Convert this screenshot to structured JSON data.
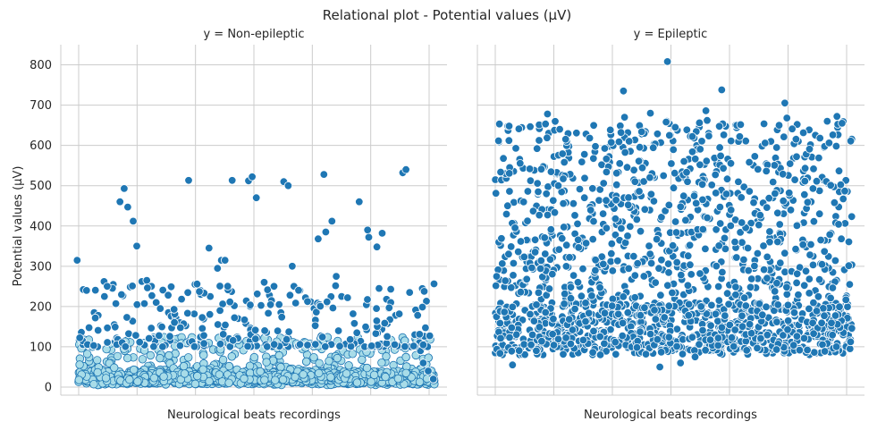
{
  "chart_data": {
    "type": "scatter",
    "title": "Relational plot - Potential values (µV)",
    "ylabel": "Potential values (µV)",
    "ylim": [
      -20,
      850
    ],
    "yticks": [
      0,
      100,
      200,
      300,
      400,
      500,
      600,
      700,
      800
    ],
    "ytick_labels": [
      "0",
      "100",
      "200",
      "300",
      "400",
      "500",
      "600",
      "700",
      "800"
    ],
    "grid": true,
    "colors": {
      "marker_fill": "#1f77b4",
      "marker_edge": "#ffffff",
      "dense_fill": "#a8dce8",
      "grid": "#cccccc"
    },
    "panels": [
      {
        "facet_title": "y = Non-epileptic",
        "xlabel": "Neurological beats recordings",
        "point_count": 2300,
        "dense_band": [
          5,
          125
        ],
        "series_values_sample": [
          315,
          242,
          240,
          185,
          178,
          262,
          225,
          255,
          155,
          460,
          493,
          447,
          412,
          350,
          262,
          265,
          250,
          210,
          195,
          185,
          176,
          172,
          160,
          152,
          513,
          255,
          240,
          230,
          345,
          225,
          295,
          315,
          315,
          513,
          202,
          170,
          158,
          512,
          522,
          470,
          260,
          228,
          215,
          205,
          510,
          500,
          300,
          250,
          240,
          222,
          212,
          195,
          368,
          528,
          385,
          412,
          275,
          225,
          222,
          182,
          158,
          460,
          390,
          372,
          348,
          245,
          382,
          218,
          210,
          178,
          532,
          540,
          235,
          130,
          90,
          60,
          40,
          20
        ]
      },
      {
        "facet_title": "y = Epileptic",
        "xlabel": "Neurological beats recordings",
        "point_count": 1700,
        "value_range": [
          50,
          810
        ],
        "series_values_sample": [
          808,
          738,
          735,
          705,
          686,
          680,
          678,
          672,
          670,
          668,
          662,
          660,
          658,
          655,
          650,
          645,
          640,
          632,
          625,
          622,
          618,
          60,
          55,
          50,
          75,
          80,
          90,
          100
        ]
      }
    ]
  }
}
